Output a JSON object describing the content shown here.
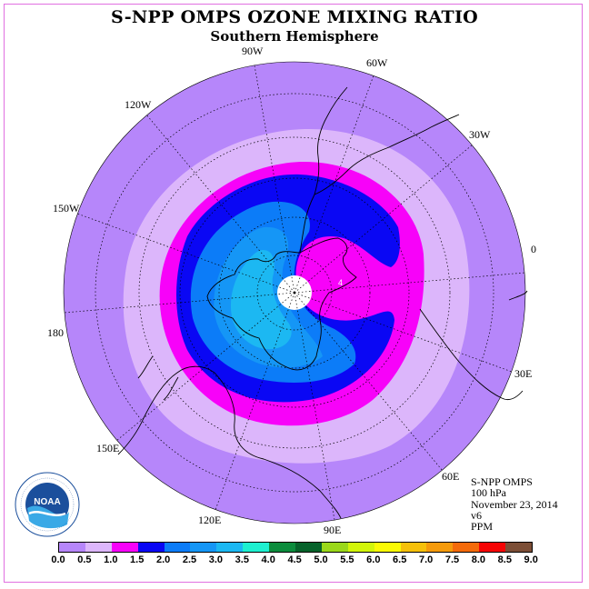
{
  "title": "S-NPP OMPS OZONE MIXING RATIO",
  "subtitle": "Southern Hemisphere",
  "map": {
    "projection": "polar stereographic (south pole)",
    "longitude_labels": {
      "lon_90w": "90W",
      "lon_60w": "60W",
      "lon_30w": "30W",
      "lon_0": "0",
      "lon_30e": "30E",
      "lon_60e": "60E",
      "lon_90e": "90E",
      "lon_120e": "120E",
      "lon_150e": "150E",
      "lon_180": "180",
      "lon_150w": "150W",
      "lon_120w": "120W"
    },
    "contour_levels_ppm": [
      0.5,
      1.0,
      1.5,
      2.0,
      2.5,
      3.0
    ],
    "max_value_marker": "4",
    "colors": {
      "0.0-0.5": "#b686fa",
      "0.5-1.0": "#dcb6fb",
      "1.0-1.5": "#f702f9",
      "1.5-2.0": "#0a07f4",
      "2.0-2.5": "#0c7cf8",
      "2.5-3.0": "#1596f6",
      "3.0-3.5": "#1cb8f2"
    }
  },
  "info": {
    "instrument": "S-NPP OMPS",
    "level": "100 hPa",
    "date": "November 23, 2014",
    "version": "v6",
    "units": "PPM"
  },
  "colorbar": {
    "ticks": [
      "0.0",
      "0.5",
      "1.0",
      "1.5",
      "2.0",
      "2.5",
      "3.0",
      "3.5",
      "4.0",
      "4.5",
      "5.0",
      "5.5",
      "6.0",
      "6.5",
      "7.0",
      "7.5",
      "8.0",
      "8.5",
      "9.0"
    ],
    "colors": [
      "#b686fa",
      "#dcb6fb",
      "#f702f9",
      "#0a07f4",
      "#0c7cf8",
      "#1596f6",
      "#1cb8f2",
      "#1ef0d0",
      "#0c8c3c",
      "#06622a",
      "#9ad81a",
      "#d2f50a",
      "#fafa05",
      "#f6c00a",
      "#f59a0b",
      "#f46a0a",
      "#f50505",
      "#7c4e36"
    ]
  },
  "logo": {
    "text": "NOAA",
    "ring_text": "NATIONAL OCEANIC AND ATMOSPHERIC ADMINISTRATION · U.S. DEPARTMENT OF COMMERCE"
  }
}
